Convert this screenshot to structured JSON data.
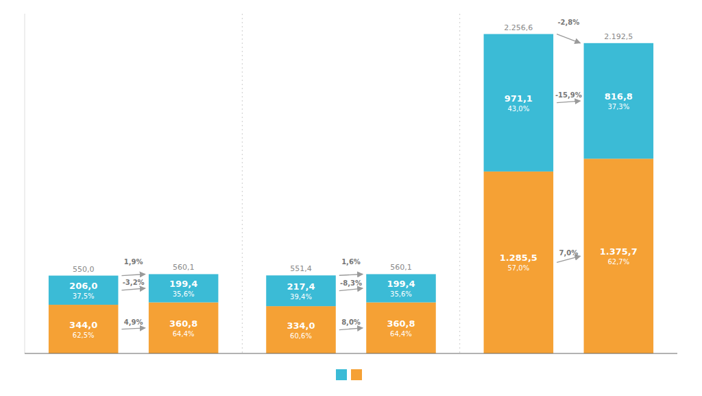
{
  "chart_data": {
    "type": "bar",
    "stacked": true,
    "data_labels": true,
    "tick_labels": false,
    "grid": false,
    "categories": [
      null,
      null,
      null,
      null,
      null,
      null
    ],
    "ylim": [
      0,
      2400
    ],
    "series": [
      {
        "color": "#F5A135",
        "values": [
          344.0,
          360.8,
          334.0,
          360.8,
          1285.5,
          1375.7
        ],
        "value_labels": [
          "344,0",
          "360,8",
          "334,0",
          "360,8",
          "1.285,5",
          "1.375,7"
        ],
        "share_labels": [
          "62,5%",
          "64,4%",
          "60,6%",
          "64,4%",
          "57,0%",
          "62,7%"
        ],
        "change_labels": [
          "4,9%",
          "8,0%",
          "7,0%"
        ]
      },
      {
        "color": "#3BBBD6",
        "values": [
          206.0,
          199.4,
          217.4,
          199.4,
          971.1,
          816.8
        ],
        "value_labels": [
          "206,0",
          "199,4",
          "217,4",
          "199,4",
          "971,1",
          "816,8"
        ],
        "share_labels": [
          "37,5%",
          "35,6%",
          "39,4%",
          "35,6%",
          "43,0%",
          "37,3%"
        ],
        "change_labels": [
          "-3,2%",
          "-8,3%",
          "-15,9%"
        ]
      }
    ],
    "totals": [
      550.0,
      560.1,
      551.4,
      560.1,
      2256.6,
      2192.5
    ],
    "total_labels": [
      "550,0",
      "560,1",
      "551,4",
      "560,1",
      "2.256,6",
      "2.192,5"
    ],
    "total_change_labels": [
      "1,9%",
      "1,6%",
      "-2,8%"
    ]
  }
}
